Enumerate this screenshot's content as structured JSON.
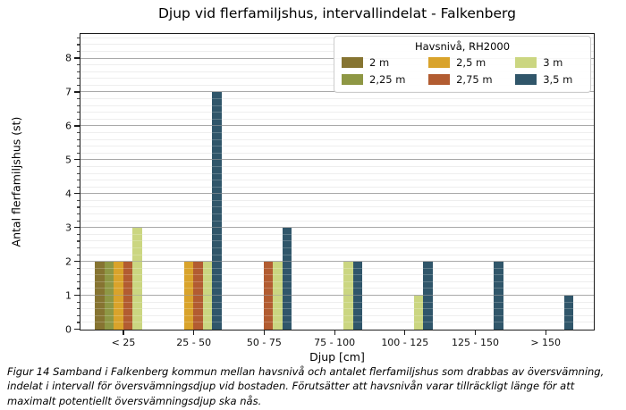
{
  "figure": {
    "title": "Djup vid flerfamiljshus, intervallindelat - Falkenberg",
    "caption": "Figur 14 Samband i Falkenberg kommun mellan havsnivå och antalet flerfamiljshus som drabbas av översvämning, indelat i intervall för översvämningsdjup vid bostaden. Förutsätter att havsnivån varar tillräckligt länge för att maximalt potentiellt översvämningsdjup ska nås."
  },
  "chart_data": {
    "type": "bar",
    "title": "Djup vid flerfamiljshus, intervallindelat - Falkenberg",
    "xlabel": "Djup [cm]",
    "ylabel": "Antal flerfamiljshus (st)",
    "categories": [
      "< 25",
      "25 - 50",
      "50 - 75",
      "75 - 100",
      "100 - 125",
      "125 - 150",
      "> 150"
    ],
    "legend_title": "Havsnivå, RH2000",
    "legend_position": "upper right",
    "series": [
      {
        "name": "2 m",
        "color": "#867431",
        "values": [
          2,
          0,
          0,
          0,
          0,
          0,
          0
        ]
      },
      {
        "name": "2,25 m",
        "color": "#8e9744",
        "values": [
          2,
          0,
          0,
          0,
          0,
          0,
          0
        ]
      },
      {
        "name": "2,5 m",
        "color": "#d9a32b",
        "values": [
          2,
          2,
          0,
          0,
          0,
          0,
          0
        ]
      },
      {
        "name": "2,75 m",
        "color": "#b25c31",
        "values": [
          2,
          2,
          2,
          0,
          0,
          0,
          0
        ]
      },
      {
        "name": "3 m",
        "color": "#cbd681",
        "values": [
          3,
          2,
          2,
          2,
          1,
          0,
          0
        ]
      },
      {
        "name": "3,5 m",
        "color": "#30566a",
        "values": [
          0,
          7,
          3,
          2,
          2,
          2,
          1
        ]
      }
    ],
    "ylim": [
      0,
      8.7
    ],
    "yticks": [
      0,
      1,
      2,
      3,
      4,
      5,
      6,
      7,
      8
    ],
    "minor_tick_step": 0.2,
    "grid": true,
    "grid_major_color": "#b3b3b3",
    "grid_minor_color": "#e9e9e9"
  }
}
